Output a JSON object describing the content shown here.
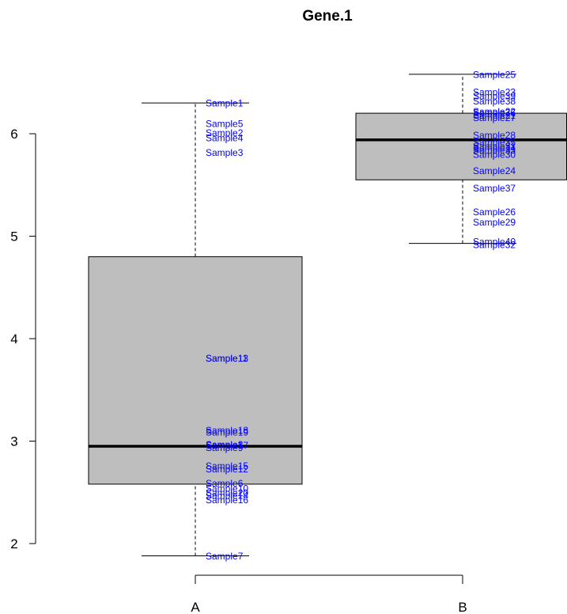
{
  "chart_data": {
    "type": "boxplot",
    "title": "Gene.1",
    "xlabel": "",
    "ylabel": "",
    "categories": [
      "A",
      "B"
    ],
    "ylim": [
      1.8,
      6.85
    ],
    "yticks": [
      "2",
      "3",
      "4",
      "5",
      "6"
    ],
    "box_color": "#bebebe",
    "point_label_color": "#0000ff",
    "boxes": [
      {
        "category": "A",
        "whisker_low": 1.88,
        "q1": 2.58,
        "median": 2.95,
        "q3": 4.8,
        "whisker_high": 6.3
      },
      {
        "category": "B",
        "whisker_low": 4.93,
        "q1": 5.55,
        "median": 5.94,
        "q3": 6.2,
        "whisker_high": 6.58
      }
    ],
    "points": [
      {
        "group": "A",
        "label": "Sample1",
        "value": 6.3
      },
      {
        "group": "A",
        "label": "Sample5",
        "value": 6.1
      },
      {
        "group": "A",
        "label": "Sample2",
        "value": 6.01
      },
      {
        "group": "A",
        "label": "Sample4",
        "value": 5.96
      },
      {
        "group": "A",
        "label": "Sample3",
        "value": 5.82
      },
      {
        "group": "A",
        "label": "Sample13",
        "value": 3.81
      },
      {
        "group": "A",
        "label": "Sample11",
        "value": 3.81
      },
      {
        "group": "A",
        "label": "Sample18",
        "value": 3.11
      },
      {
        "group": "A",
        "label": "Sample19",
        "value": 3.09
      },
      {
        "group": "A",
        "label": "Sample8",
        "value": 2.97
      },
      {
        "group": "A",
        "label": "Sample17",
        "value": 2.96
      },
      {
        "group": "A",
        "label": "Sample9",
        "value": 2.94
      },
      {
        "group": "A",
        "label": "Sample15",
        "value": 2.76
      },
      {
        "group": "A",
        "label": "Sample12",
        "value": 2.73
      },
      {
        "group": "A",
        "label": "Sample6",
        "value": 2.59
      },
      {
        "group": "A",
        "label": "Sample10",
        "value": 2.54
      },
      {
        "group": "A",
        "label": "Sample20",
        "value": 2.5
      },
      {
        "group": "A",
        "label": "Sample14",
        "value": 2.47
      },
      {
        "group": "A",
        "label": "Sample16",
        "value": 2.43
      },
      {
        "group": "A",
        "label": "Sample7",
        "value": 1.88
      },
      {
        "group": "B",
        "label": "Sample25",
        "value": 6.58
      },
      {
        "group": "B",
        "label": "Sample23",
        "value": 6.41
      },
      {
        "group": "B",
        "label": "Sample39",
        "value": 6.37
      },
      {
        "group": "B",
        "label": "Sample38",
        "value": 6.32
      },
      {
        "group": "B",
        "label": "Sample22",
        "value": 6.22
      },
      {
        "group": "B",
        "label": "Sample36",
        "value": 6.21
      },
      {
        "group": "B",
        "label": "Sample21",
        "value": 6.18
      },
      {
        "group": "B",
        "label": "Sample27",
        "value": 6.16
      },
      {
        "group": "B",
        "label": "Sample28",
        "value": 5.99
      },
      {
        "group": "B",
        "label": "Sample35",
        "value": 5.92
      },
      {
        "group": "B",
        "label": "Sample31",
        "value": 5.88
      },
      {
        "group": "B",
        "label": "Sample34",
        "value": 5.86
      },
      {
        "group": "B",
        "label": "Sample33",
        "value": 5.84
      },
      {
        "group": "B",
        "label": "Sample30",
        "value": 5.8
      },
      {
        "group": "B",
        "label": "Sample24",
        "value": 5.64
      },
      {
        "group": "B",
        "label": "Sample37",
        "value": 5.47
      },
      {
        "group": "B",
        "label": "Sample26",
        "value": 5.24
      },
      {
        "group": "B",
        "label": "Sample29",
        "value": 5.14
      },
      {
        "group": "B",
        "label": "Sample40",
        "value": 4.95
      },
      {
        "group": "B",
        "label": "Sample32",
        "value": 4.92
      }
    ]
  }
}
